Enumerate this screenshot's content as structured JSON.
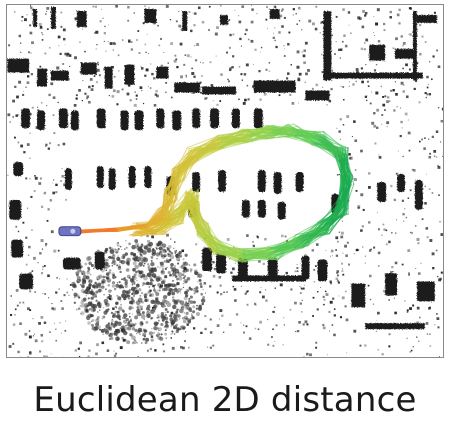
{
  "figure": {
    "caption": "Euclidean 2D distance",
    "gradient_colors": [
      "#f27a2a",
      "#e9a52e",
      "#cfc638",
      "#9fd24a",
      "#5fcd55",
      "#16a94e"
    ],
    "map_color": "#1d1d1d",
    "marker_color": "#6f74c2",
    "icons": [
      "point-cloud-map",
      "trajectory-bundle",
      "start-marker"
    ]
  }
}
